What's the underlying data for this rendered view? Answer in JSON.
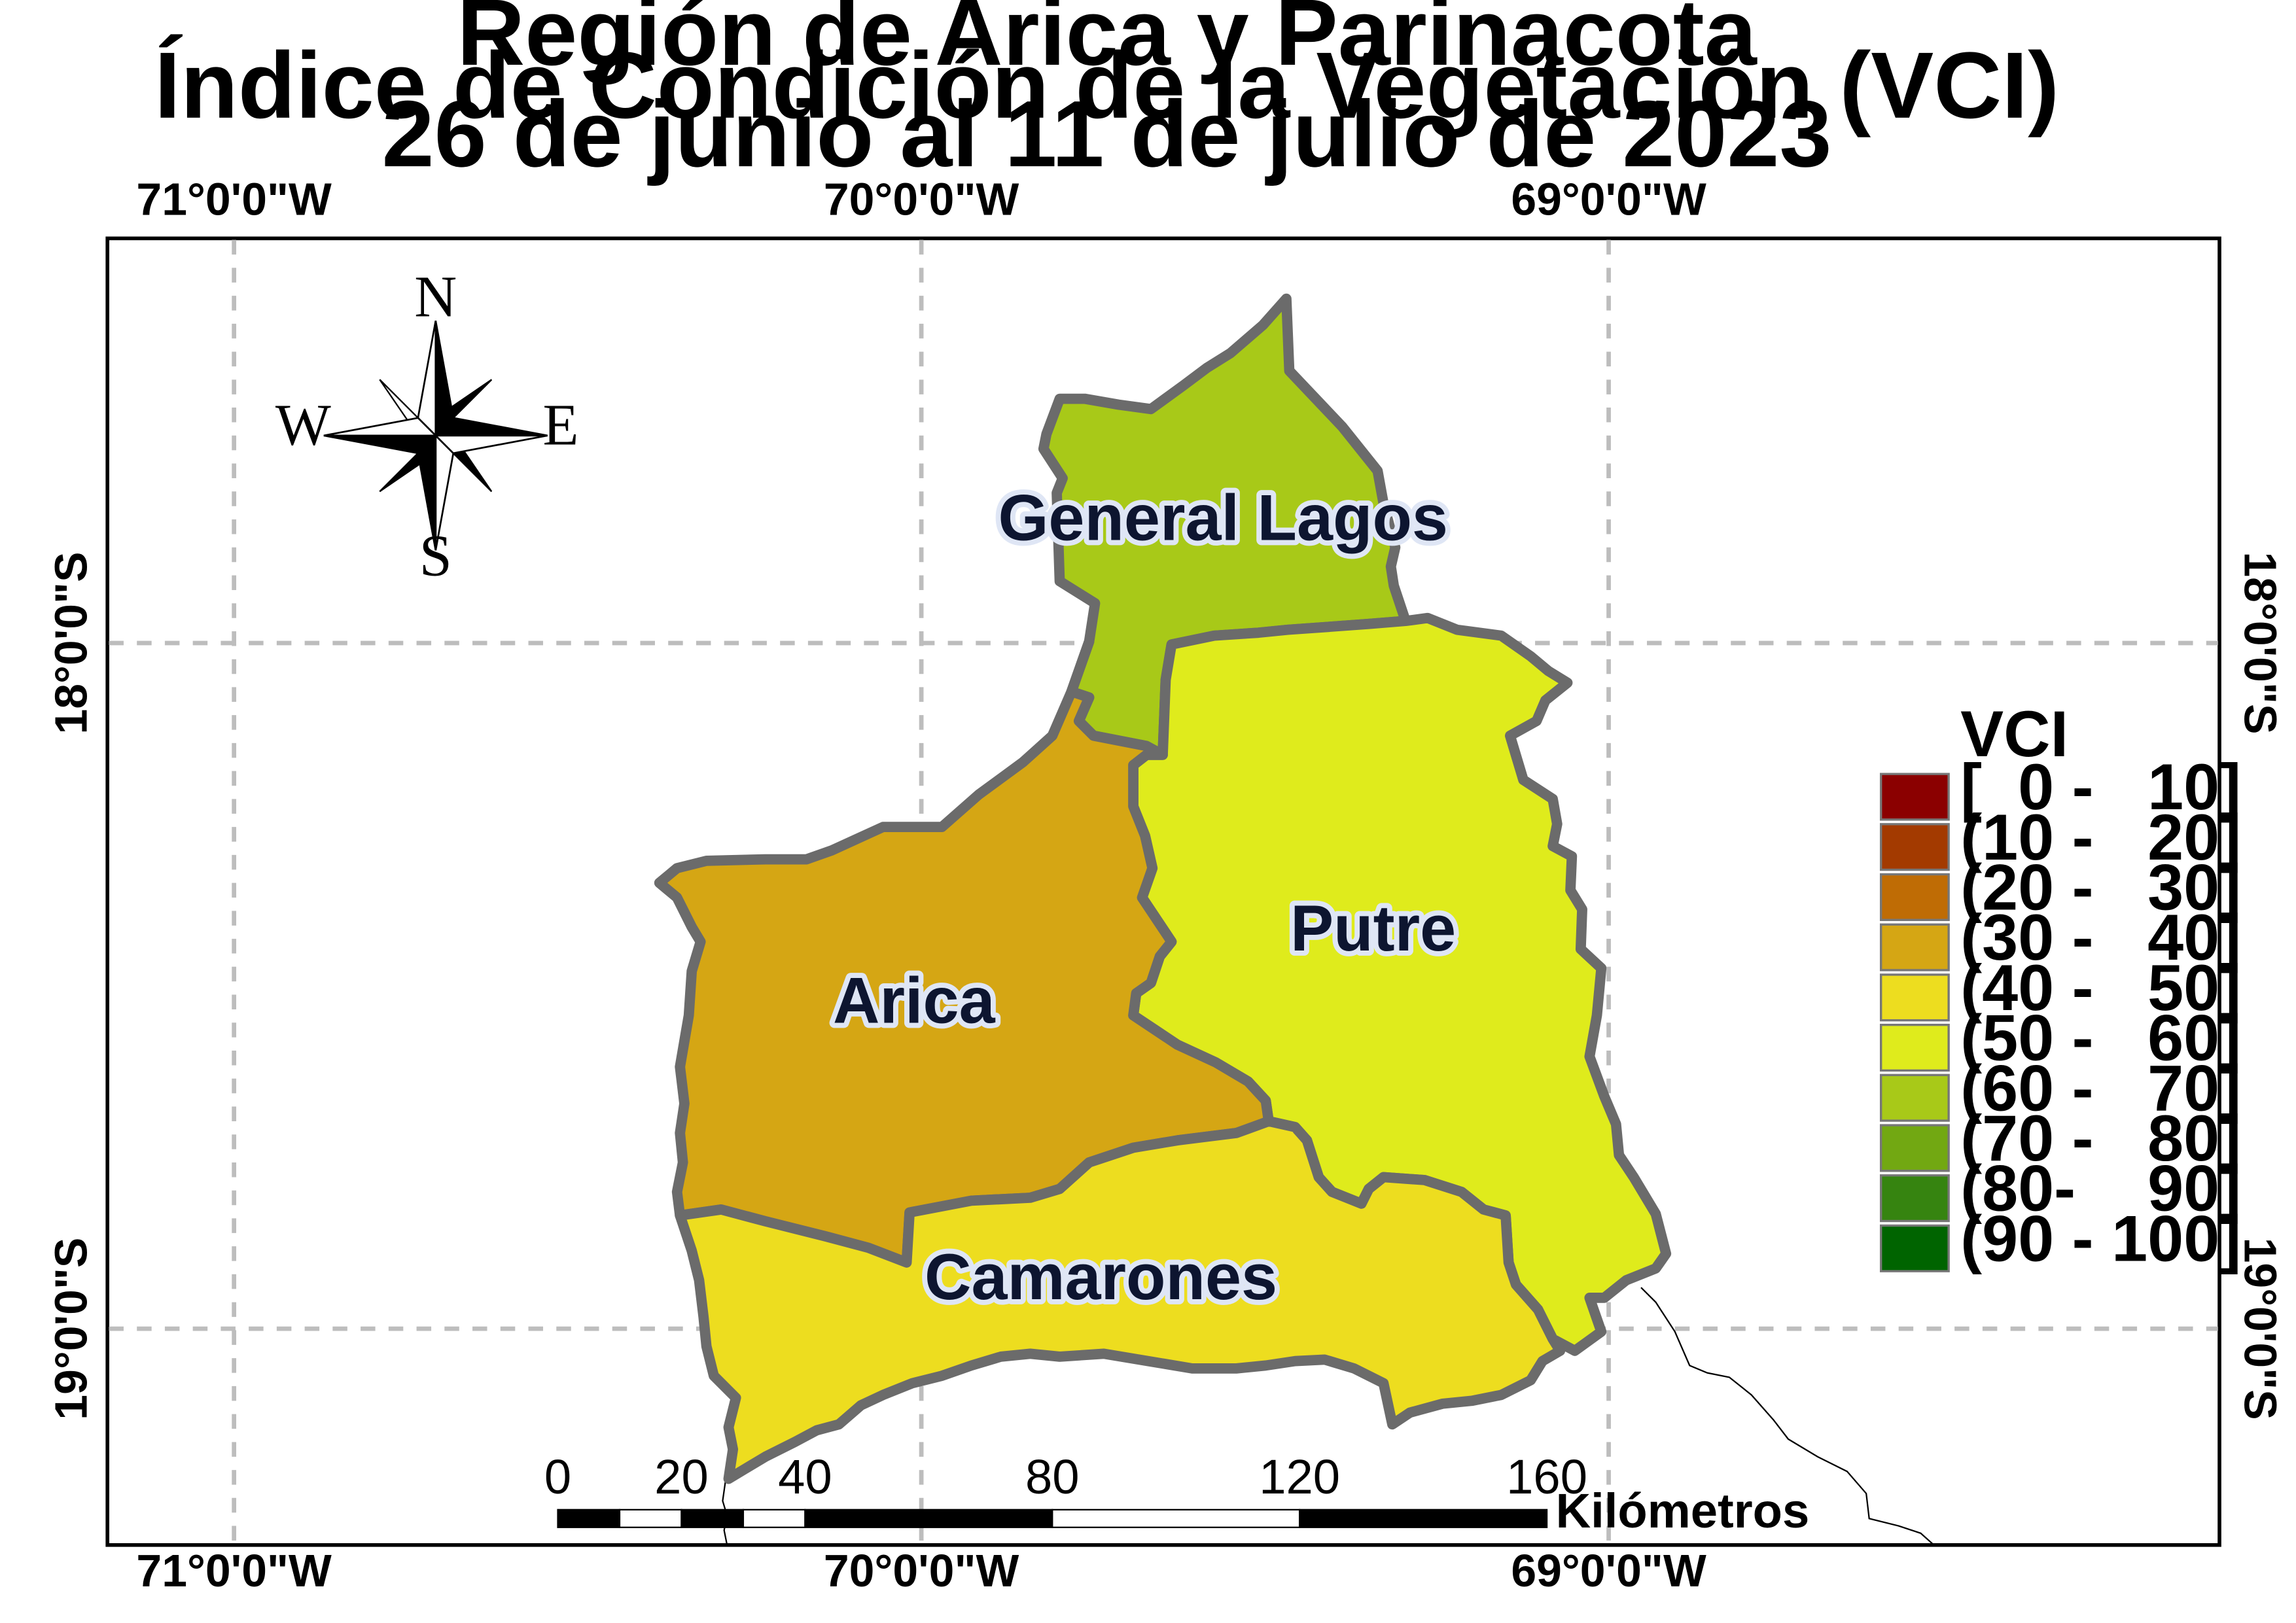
{
  "title": {
    "line1": "Región de Arica y Parinacota",
    "line2": "Índice de Condición de la Vegetación (VCI)",
    "line3": "26 de junio al 11 de julio de 2023"
  },
  "graticule": {
    "lon_labels": [
      "71°0'0\"W",
      "70°0'0\"W",
      "69°0'0\"W"
    ],
    "lat_labels": [
      "18°0'0\"S",
      "19°0'0\"S"
    ]
  },
  "compass": {
    "n": "N",
    "s": "S",
    "e": "E",
    "w": "W"
  },
  "regions": [
    {
      "name": "General Lagos",
      "vci_class": "(60 -   70]",
      "color": "#a8c918"
    },
    {
      "name": "Putre",
      "vci_class": "(50 -   60]",
      "color": "#dfeb1c"
    },
    {
      "name": "Arica",
      "vci_class": "(30 -   40]",
      "color": "#d5a614"
    },
    {
      "name": "Camarones",
      "vci_class": "(40 -   50]",
      "color": "#eddd1f"
    }
  ],
  "legend": {
    "title": "VCI",
    "items": [
      {
        "label": "[  0 -   10]",
        "color": "#8b0000"
      },
      {
        "label": "(10 -   20]",
        "color": "#a33a00"
      },
      {
        "label": "(20 -   30]",
        "color": "#bf6c05"
      },
      {
        "label": "(30 -   40]",
        "color": "#d5a614"
      },
      {
        "label": "(40 -   50]",
        "color": "#eddd1f"
      },
      {
        "label": "(50 -   60]",
        "color": "#dfeb1c"
      },
      {
        "label": "(60 -   70]",
        "color": "#a8c918"
      },
      {
        "label": "(70 -   80]",
        "color": "#72a812"
      },
      {
        "label": "(80-    90]",
        "color": "#368410"
      },
      {
        "label": "(90 - 100]",
        "color": "#006400"
      }
    ]
  },
  "scale_bar": {
    "ticks": [
      "0",
      "20",
      "40",
      "80",
      "120",
      "160"
    ],
    "unit": "Kilómetros"
  }
}
